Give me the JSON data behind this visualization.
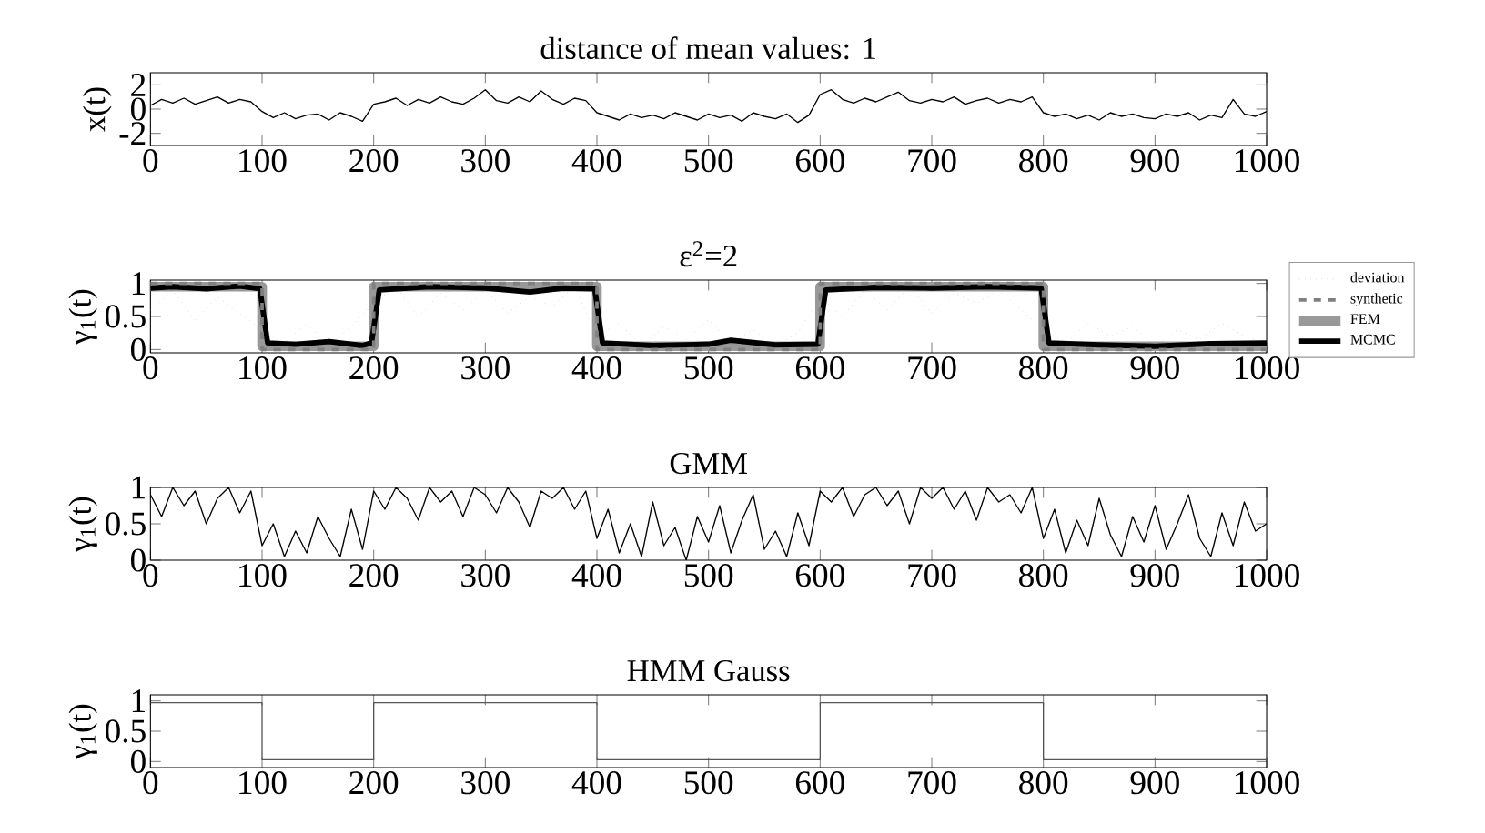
{
  "chart_data": [
    {
      "type": "line",
      "title": "distance of mean values: 1",
      "ylabel": "x(t)",
      "xlim": [
        0,
        1000
      ],
      "ylim": [
        -3,
        3
      ],
      "xticks": [
        0,
        100,
        200,
        300,
        400,
        500,
        600,
        700,
        800,
        900,
        1000
      ],
      "yticks": [
        -2,
        0,
        2
      ],
      "marker": "none",
      "series": [
        {
          "color": "#000000",
          "line_style": "solid",
          "x": [
            0,
            10,
            20,
            30,
            40,
            50,
            60,
            70,
            80,
            90,
            100,
            110,
            120,
            130,
            140,
            150,
            160,
            170,
            180,
            190,
            200,
            210,
            220,
            230,
            240,
            250,
            260,
            270,
            280,
            290,
            300,
            310,
            320,
            330,
            340,
            350,
            360,
            370,
            380,
            390,
            400,
            410,
            420,
            430,
            440,
            450,
            460,
            470,
            480,
            490,
            500,
            510,
            520,
            530,
            540,
            550,
            560,
            570,
            580,
            590,
            600,
            610,
            620,
            630,
            640,
            650,
            660,
            670,
            680,
            690,
            700,
            710,
            720,
            730,
            740,
            750,
            760,
            770,
            780,
            790,
            800,
            810,
            820,
            830,
            840,
            850,
            860,
            870,
            880,
            890,
            900,
            910,
            920,
            930,
            940,
            950,
            960,
            970,
            980,
            990,
            1000
          ],
          "values": [
            0.3,
            0.8,
            0.5,
            0.9,
            0.4,
            0.7,
            1.0,
            0.5,
            0.8,
            0.6,
            -0.2,
            -0.7,
            -0.3,
            -0.8,
            -0.5,
            -0.4,
            -0.9,
            -0.3,
            -0.6,
            -1.0,
            0.4,
            0.6,
            0.9,
            0.3,
            0.8,
            0.5,
            1.0,
            0.6,
            0.4,
            0.9,
            1.6,
            0.7,
            0.5,
            1.0,
            0.6,
            1.5,
            0.8,
            0.4,
            0.9,
            0.7,
            -0.3,
            -0.6,
            -0.9,
            -0.4,
            -0.7,
            -0.5,
            -0.8,
            -0.3,
            -0.6,
            -0.9,
            -0.4,
            -0.7,
            -0.5,
            -1.0,
            -0.3,
            -0.6,
            -0.8,
            -0.4,
            -1.1,
            -0.5,
            1.2,
            1.6,
            0.8,
            0.5,
            0.9,
            0.6,
            1.0,
            1.4,
            0.7,
            0.5,
            0.8,
            0.6,
            1.0,
            0.4,
            0.7,
            0.9,
            0.5,
            0.8,
            0.6,
            1.0,
            -0.3,
            -0.6,
            -0.4,
            -0.8,
            -0.5,
            -0.9,
            -0.3,
            -0.6,
            -0.4,
            -0.7,
            -0.8,
            -0.4,
            -0.6,
            -0.3,
            -0.9,
            -0.5,
            -0.7,
            0.8,
            -0.4,
            -0.6,
            -0.2
          ]
        }
      ]
    },
    {
      "type": "line",
      "title": "ε$^{2}$=2",
      "ylabel": "γ$_{1}$(t)",
      "xlim": [
        0,
        1000
      ],
      "ylim": [
        -0.05,
        1.05
      ],
      "xticks": [
        0,
        100,
        200,
        300,
        400,
        500,
        600,
        700,
        800,
        900,
        1000
      ],
      "yticks": [
        0,
        0.5,
        1
      ],
      "marker": "none",
      "legend": "right",
      "series": [
        {
          "name": "deviation",
          "color": "#c8c8c8",
          "line_style": "dotted",
          "x": [
            0,
            20,
            40,
            60,
            80,
            100,
            120,
            140,
            160,
            180,
            200,
            220,
            240,
            260,
            280,
            300,
            320,
            340,
            360,
            380,
            400,
            420,
            440,
            460,
            480,
            500,
            520,
            540,
            560,
            580,
            600,
            620,
            640,
            660,
            680,
            700,
            720,
            740,
            760,
            780,
            800,
            820,
            840,
            860,
            880,
            900,
            920,
            940,
            960,
            980,
            1000
          ],
          "values": [
            0.6,
            0.9,
            0.45,
            0.8,
            0.55,
            0.3,
            0.1,
            0.4,
            0.05,
            0.35,
            0.7,
            0.95,
            0.5,
            0.85,
            0.6,
            0.9,
            0.55,
            0.8,
            0.65,
            0.95,
            0.2,
            0.4,
            0.05,
            0.35,
            0.15,
            0.45,
            0.1,
            0.3,
            0.05,
            0.25,
            0.8,
            0.5,
            0.9,
            0.6,
            0.95,
            0.55,
            0.85,
            0.7,
            0.9,
            0.6,
            0.3,
            0.1,
            0.4,
            0.2,
            0.35,
            0.05,
            0.3,
            0.15,
            0.4,
            0.2,
            0.1
          ]
        },
        {
          "name": "synthetic",
          "color": "#808080",
          "line_style": "dashed",
          "x": [
            0,
            100,
            100,
            200,
            200,
            400,
            400,
            600,
            600,
            800,
            800,
            1000
          ],
          "values": [
            1,
            1,
            0,
            0,
            1,
            1,
            0,
            0,
            1,
            1,
            0,
            0
          ]
        },
        {
          "name": "FEM",
          "color": "#999999",
          "line_style": "solid",
          "x": [
            0,
            100,
            100,
            200,
            200,
            400,
            400,
            600,
            600,
            800,
            800,
            1000
          ],
          "values": [
            0.95,
            0.95,
            0.05,
            0.05,
            0.95,
            0.95,
            0.05,
            0.05,
            0.95,
            0.95,
            0.05,
            0.05
          ]
        },
        {
          "name": "MCMC",
          "color": "#000000",
          "line_style": "solid",
          "x": [
            0,
            20,
            50,
            80,
            98,
            105,
            130,
            160,
            190,
            198,
            205,
            250,
            300,
            340,
            370,
            398,
            405,
            450,
            500,
            520,
            560,
            598,
            605,
            650,
            700,
            750,
            798,
            805,
            850,
            900,
            950,
            1000
          ],
          "values": [
            0.93,
            0.95,
            0.92,
            0.96,
            0.92,
            0.1,
            0.08,
            0.12,
            0.06,
            0.1,
            0.9,
            0.95,
            0.93,
            0.87,
            0.93,
            0.92,
            0.1,
            0.06,
            0.08,
            0.14,
            0.07,
            0.08,
            0.9,
            0.94,
            0.93,
            0.95,
            0.93,
            0.1,
            0.07,
            0.05,
            0.09,
            0.1
          ]
        }
      ]
    },
    {
      "type": "line",
      "title": "GMM",
      "ylabel": "γ$_{1}$(t)",
      "xlim": [
        0,
        1000
      ],
      "ylim": [
        0,
        1
      ],
      "xticks": [
        0,
        100,
        200,
        300,
        400,
        500,
        600,
        700,
        800,
        900,
        1000
      ],
      "yticks": [
        0,
        0.5,
        1
      ],
      "marker": "none",
      "series": [
        {
          "color": "#000000",
          "line_style": "solid",
          "x": [
            0,
            10,
            20,
            30,
            40,
            50,
            60,
            70,
            80,
            90,
            100,
            110,
            120,
            130,
            140,
            150,
            160,
            170,
            180,
            190,
            200,
            210,
            220,
            230,
            240,
            250,
            260,
            270,
            280,
            290,
            300,
            310,
            320,
            330,
            340,
            350,
            360,
            370,
            380,
            390,
            400,
            410,
            420,
            430,
            440,
            450,
            460,
            470,
            480,
            490,
            500,
            510,
            520,
            530,
            540,
            550,
            560,
            570,
            580,
            590,
            600,
            610,
            620,
            630,
            640,
            650,
            660,
            670,
            680,
            690,
            700,
            710,
            720,
            730,
            740,
            750,
            760,
            770,
            780,
            790,
            800,
            810,
            820,
            830,
            840,
            850,
            860,
            870,
            880,
            890,
            900,
            910,
            920,
            930,
            940,
            950,
            960,
            970,
            980,
            990,
            1000
          ],
          "values": [
            0.9,
            0.6,
            1.0,
            0.75,
            0.95,
            0.5,
            0.85,
            1.0,
            0.65,
            0.95,
            0.2,
            0.5,
            0.05,
            0.4,
            0.1,
            0.6,
            0.3,
            0.05,
            0.7,
            0.15,
            0.95,
            0.7,
            1.0,
            0.85,
            0.55,
            1.0,
            0.8,
            0.95,
            0.6,
            1.0,
            0.9,
            0.65,
            1.0,
            0.8,
            0.45,
            0.95,
            0.85,
            1.0,
            0.7,
            0.95,
            0.3,
            0.7,
            0.1,
            0.5,
            0.05,
            0.8,
            0.2,
            0.45,
            0.0,
            0.6,
            0.25,
            0.75,
            0.1,
            0.55,
            0.9,
            0.15,
            0.4,
            0.05,
            0.65,
            0.2,
            0.95,
            0.8,
            1.0,
            0.6,
            0.9,
            1.0,
            0.75,
            0.95,
            0.5,
            1.0,
            0.85,
            1.0,
            0.7,
            0.95,
            0.55,
            1.0,
            0.8,
            0.9,
            0.65,
            1.0,
            0.3,
            0.7,
            0.1,
            0.55,
            0.2,
            0.85,
            0.35,
            0.05,
            0.6,
            0.25,
            0.75,
            0.15,
            0.5,
            0.9,
            0.3,
            0.05,
            0.65,
            0.2,
            0.8,
            0.4,
            0.5
          ]
        }
      ]
    },
    {
      "type": "line",
      "title": "HMM Gauss",
      "ylabel": "γ$_{1}$(t)",
      "xlim": [
        0,
        1000
      ],
      "ylim": [
        -0.1,
        1.1
      ],
      "xticks": [
        0,
        100,
        200,
        300,
        400,
        500,
        600,
        700,
        800,
        900,
        1000
      ],
      "yticks": [
        0,
        0.5,
        1
      ],
      "marker": "none",
      "series": [
        {
          "color": "#555555",
          "line_style": "solid",
          "x": [
            0,
            100,
            100,
            200,
            200,
            400,
            400,
            600,
            600,
            800,
            800,
            1000
          ],
          "values": [
            0.97,
            0.97,
            0.03,
            0.03,
            0.97,
            0.97,
            0.03,
            0.03,
            0.97,
            0.97,
            0.03,
            0.03
          ]
        }
      ]
    }
  ]
}
